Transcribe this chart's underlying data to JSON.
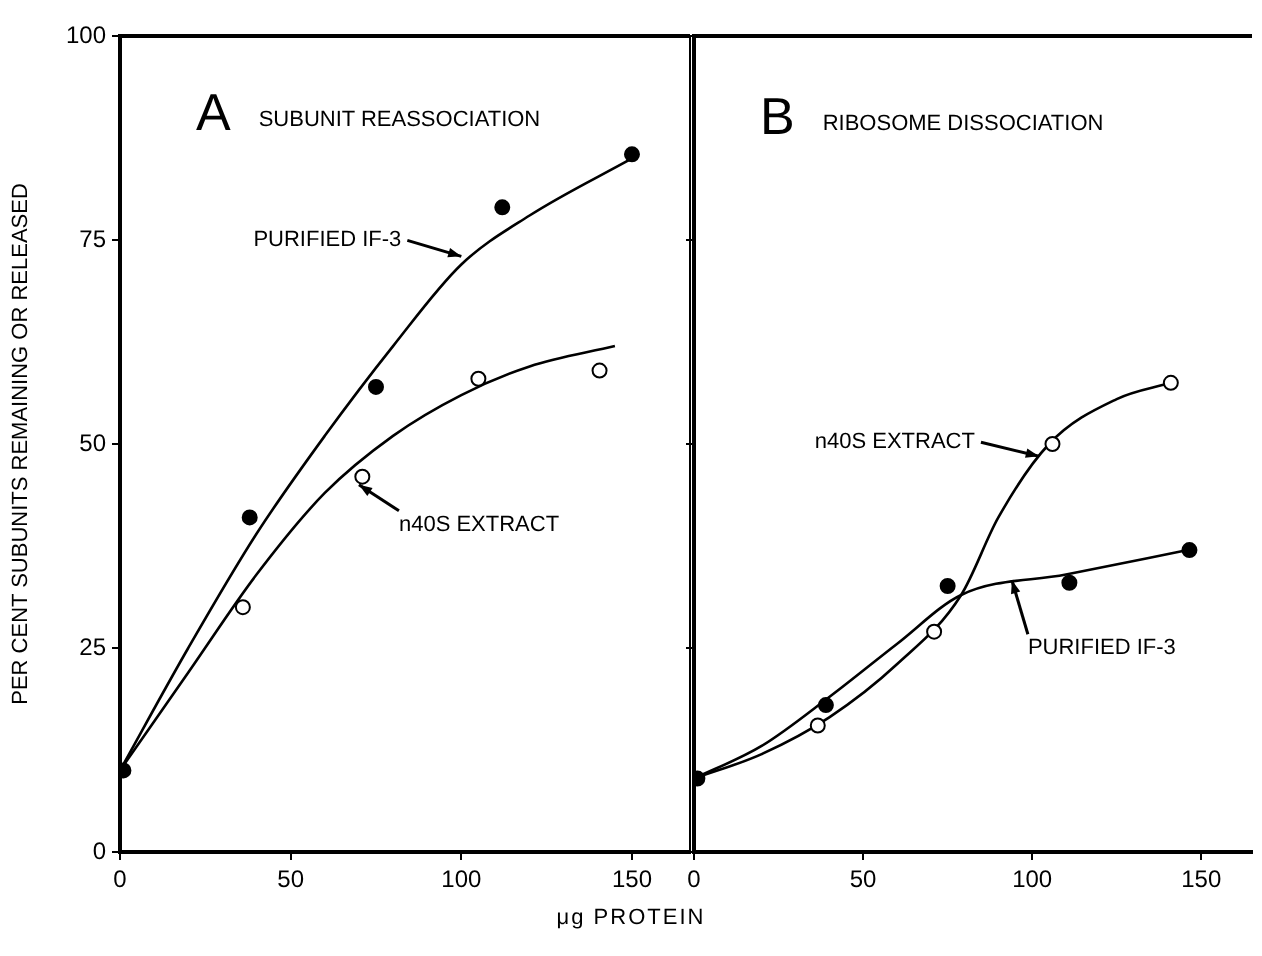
{
  "chart_data": [
    {
      "type": "line",
      "title": "SUBUNIT REASSOCIATION",
      "ylabel": "PER CENT SUBUNITS REMAINING OR RELEASED",
      "xlabel": "μg PROTEIN",
      "xlim": [
        0,
        167
      ],
      "xticks": [
        0,
        50,
        100,
        150
      ],
      "ylim": [
        0,
        100
      ],
      "yticks": [
        0,
        25,
        50,
        75,
        100
      ],
      "grid": false,
      "annotations": [
        "A",
        {
          "text": "PURIFIED IF-3",
          "x": 100,
          "y": 73
        },
        {
          "text": "n40S EXTRACT",
          "x": 70,
          "y": 45
        }
      ],
      "series": [
        {
          "type": "scatter",
          "marker": "circle",
          "color": "#000000",
          "x": [
            1,
            38,
            75,
            112,
            150
          ],
          "values": [
            10,
            41,
            57,
            79,
            85.5
          ]
        },
        {
          "type": "scatter",
          "marker": "circle",
          "color": "#ffffff",
          "x": [
            36,
            71,
            105,
            140.5
          ],
          "values": [
            30,
            46,
            58,
            59
          ]
        },
        {
          "color": "#000000",
          "x": [
            0,
            20,
            40,
            60,
            80,
            100,
            120,
            150
          ],
          "values": [
            10,
            25,
            39,
            51,
            62,
            72,
            78,
            85
          ]
        },
        {
          "color": "#000000",
          "x": [
            0,
            20,
            40,
            60,
            80,
            100,
            120,
            145
          ],
          "values": [
            10,
            22,
            34,
            44,
            51,
            56,
            59.5,
            62
          ]
        }
      ]
    },
    {
      "type": "line",
      "title": "RIBOSOME DISSOCIATION",
      "tick_labels": "x",
      "xlim": [
        0,
        165
      ],
      "xticks": [
        0,
        50,
        100,
        150
      ],
      "ylim": [
        0,
        100
      ],
      "yticks": [
        0,
        25,
        50,
        75,
        100
      ],
      "grid": false,
      "annotations": [
        "B",
        {
          "text": "n40S EXTRACT",
          "x": 102,
          "y": 48.5
        },
        {
          "text": "PURIFIED IF-3",
          "x": 94,
          "y": 33.3
        }
      ],
      "series": [
        {
          "type": "scatter",
          "marker": "circle",
          "color": "#000000",
          "x": [
            1,
            39,
            75,
            111,
            146.5
          ],
          "values": [
            9,
            18,
            32.6,
            33,
            37
          ]
        },
        {
          "type": "scatter",
          "marker": "circle",
          "color": "#ffffff",
          "x": [
            36.6,
            71,
            106,
            141
          ],
          "values": [
            15.5,
            27,
            50,
            57.5
          ]
        },
        {
          "color": "#000000",
          "x": [
            0,
            20,
            40,
            60,
            79,
            110,
            146
          ],
          "values": [
            9,
            13,
            19,
            25.5,
            31.5,
            34,
            37
          ]
        },
        {
          "color": "#000000",
          "x": [
            0,
            20,
            40,
            60,
            79,
            90,
            105,
            125,
            141
          ],
          "values": [
            9,
            12,
            16.5,
            23,
            31.5,
            41,
            50,
            55.5,
            57.5
          ]
        }
      ]
    }
  ]
}
